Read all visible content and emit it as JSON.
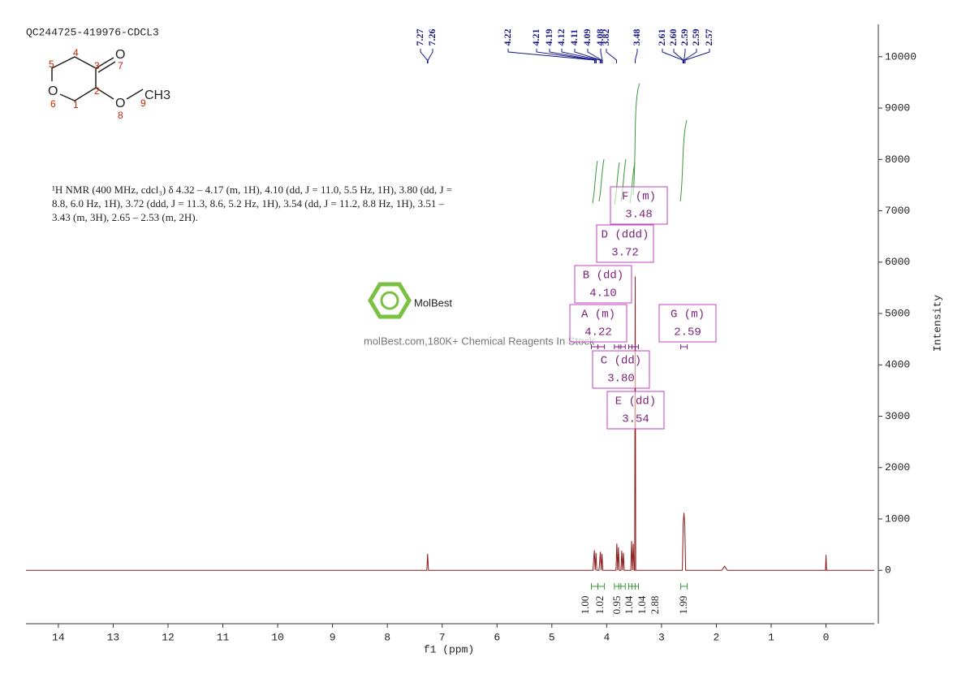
{
  "chart_data": {
    "type": "line",
    "title": "QC244725-419976-CDCL3",
    "x_label": "f1 (ppm)",
    "y_label": "Intensity",
    "xlim": [
      14.59,
      -0.88
    ],
    "xticks": [
      14,
      13,
      12,
      11,
      10,
      9,
      8,
      7,
      6,
      5,
      4,
      3,
      2,
      1,
      0
    ],
    "ylim": [
      -1040,
      10630
    ],
    "yticks": [
      0,
      1000,
      2000,
      3000,
      4000,
      5000,
      6000,
      7000,
      8000,
      9000,
      10000
    ],
    "color": "#8b1a1a",
    "x": [
      14.59,
      7.28,
      7.265,
      7.25,
      4.25,
      4.225,
      4.21,
      4.195,
      4.18,
      4.14,
      4.115,
      4.1,
      4.085,
      4.07,
      3.83,
      3.815,
      3.8,
      3.785,
      3.77,
      3.74,
      3.725,
      3.71,
      3.695,
      3.68,
      3.56,
      3.545,
      3.53,
      3.515,
      3.5,
      3.49,
      3.48,
      3.47,
      2.62,
      2.605,
      2.59,
      2.575,
      2.56,
      1.9,
      1.85,
      1.8,
      0.01,
      0,
      -0.01,
      -0.88
    ],
    "values": [
      0,
      0,
      320,
      0,
      0,
      390,
      0,
      340,
      0,
      0,
      360,
      0,
      320,
      0,
      0,
      520,
      0,
      450,
      0,
      0,
      380,
      0,
      340,
      0,
      0,
      570,
      0,
      520,
      0,
      0,
      5720,
      0,
      0,
      900,
      1120,
      860,
      0,
      0,
      80,
      0,
      0,
      300,
      0,
      0
    ],
    "peak_labels": [
      7.27,
      7.26,
      4.22,
      4.21,
      4.19,
      4.12,
      4.11,
      4.09,
      4.08,
      3.82,
      3.48,
      2.61,
      {
        "value": 2.6,
        "label": "2.60"
      },
      2.59,
      2.59,
      2.57
    ],
    "multiplets": [
      {
        "label": "A (m)",
        "shift": 4.22,
        "integral": {
          "value": 1,
          "label": "1.00"
        }
      },
      {
        "label": "B (dd)",
        "shift": {
          "value": 4.1,
          "label": "4.10"
        },
        "integral": 1.02
      },
      {
        "label": "C (dd)",
        "shift": {
          "value": 3.8,
          "label": "3.80"
        },
        "integral": 0.95
      },
      {
        "label": "D (ddd)",
        "shift": 3.72,
        "integral": 1.04
      },
      {
        "label": "E (dd)",
        "shift": 3.54,
        "integral": 1.04
      },
      {
        "label": "F (m)",
        "shift": 3.48,
        "integral": 2.88
      },
      {
        "label": "G (m)",
        "shift": 2.59,
        "integral": 1.99
      }
    ],
    "description": [
      "¹H NMR (400 MHz, cdcl₃) δ 4.32 – 4.17 (m, 1H), 4.10 (dd, J = 11.0, 5.5 Hz, 1H), 3.80 (dd, J =",
      "8.8, 6.0 Hz, 1H), 3.72 (ddd, J = 11.3, 8.6, 5.2 Hz, 1H), 3.54 (dd, J = 11.2, 8.8 Hz, 1H), 3.51 –",
      "3.43 (m, 3H), 2.65 – 2.53 (m, 2H)."
    ],
    "structure": {
      "atoms": [
        "O",
        "O",
        "O",
        "CH3"
      ],
      "numbers": [
        "1",
        "2",
        "3",
        "4",
        "5",
        "6",
        "7",
        "8",
        "9"
      ]
    },
    "watermark": {
      "brand": "MolBest",
      "tagline": "molBest.com,180K+ Chemical Reagents In Stock"
    }
  }
}
